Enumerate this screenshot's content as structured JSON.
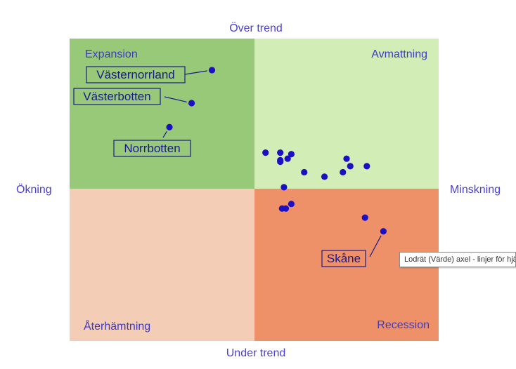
{
  "chart_data": {
    "type": "scatter",
    "axis_titles": {
      "top": "Över trend",
      "bottom": "Under trend",
      "left": "Ökning",
      "right": "Minskning"
    },
    "quadrants": [
      {
        "label": "Expansion",
        "color": "#97c979"
      },
      {
        "label": "Avmattning",
        "color": "#d3edb6"
      },
      {
        "label": "Återhämtning",
        "color": "#f3cdb5"
      },
      {
        "label": "Recession",
        "color": "#ef9168"
      }
    ],
    "xlim": [
      -1,
      1
    ],
    "ylim": [
      -1,
      1
    ],
    "point_color": "#1c10c4",
    "points": [
      {
        "x": -0.23,
        "y": 0.79,
        "label": "Västernorrland"
      },
      {
        "x": -0.34,
        "y": 0.57,
        "label": "Västerbotten"
      },
      {
        "x": -0.46,
        "y": 0.41,
        "label": "Norrbotten"
      },
      {
        "x": 0.06,
        "y": 0.24
      },
      {
        "x": 0.14,
        "y": 0.24
      },
      {
        "x": 0.2,
        "y": 0.23
      },
      {
        "x": 0.18,
        "y": 0.2
      },
      {
        "x": 0.14,
        "y": 0.19
      },
      {
        "x": 0.14,
        "y": 0.18
      },
      {
        "x": 0.5,
        "y": 0.2
      },
      {
        "x": 0.52,
        "y": 0.15
      },
      {
        "x": 0.61,
        "y": 0.15
      },
      {
        "x": 0.27,
        "y": 0.11
      },
      {
        "x": 0.48,
        "y": 0.11
      },
      {
        "x": 0.38,
        "y": 0.08
      },
      {
        "x": 0.16,
        "y": 0.01
      },
      {
        "x": 0.2,
        "y": -0.1
      },
      {
        "x": 0.17,
        "y": -0.13
      },
      {
        "x": 0.15,
        "y": -0.13
      },
      {
        "x": 0.6,
        "y": -0.19
      },
      {
        "x": 0.7,
        "y": -0.28,
        "label": "Skåne"
      }
    ]
  },
  "tooltip": {
    "text": "Lodrät (Värde) axel - linjer för hjälpnät"
  }
}
